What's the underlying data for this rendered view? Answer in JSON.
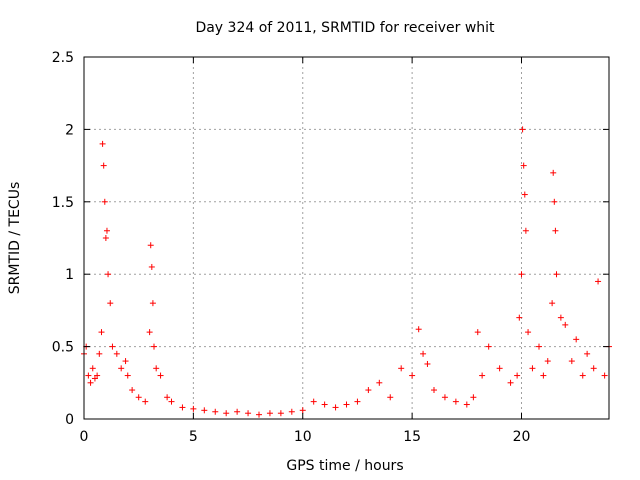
{
  "chart_data": {
    "type": "scatter",
    "title": "Day 324 of 2011, SRMTID for receiver whit",
    "xlabel": "GPS time / hours",
    "ylabel": "SRMTID / TECUs",
    "xlim": [
      0,
      24
    ],
    "ylim": [
      0,
      2.5
    ],
    "xticks": [
      0,
      5,
      10,
      15,
      20
    ],
    "yticks": [
      0,
      0.5,
      1,
      1.5,
      2,
      2.5
    ],
    "ytick_labels": [
      "0",
      "0.5",
      "1",
      "1.5",
      "2",
      "2.5"
    ],
    "grid": true,
    "marker": "plus",
    "color": "#ff0000",
    "series": [
      {
        "name": "SRMTID",
        "x": [
          0.0,
          0.1,
          0.2,
          0.3,
          0.4,
          0.5,
          0.6,
          0.7,
          0.8,
          0.85,
          0.9,
          0.95,
          1.0,
          1.05,
          1.1,
          1.2,
          1.3,
          1.5,
          1.7,
          1.9,
          2.0,
          2.2,
          2.5,
          2.8,
          3.0,
          3.05,
          3.1,
          3.15,
          3.2,
          3.3,
          3.5,
          3.8,
          4.0,
          4.5,
          5.0,
          5.5,
          6.0,
          6.5,
          7.0,
          7.5,
          8.0,
          8.5,
          9.0,
          9.5,
          10.0,
          10.5,
          11.0,
          11.5,
          12.0,
          12.5,
          13.0,
          13.5,
          14.0,
          14.5,
          15.0,
          15.3,
          15.5,
          15.7,
          16.0,
          16.5,
          17.0,
          17.5,
          17.8,
          18.0,
          18.2,
          18.5,
          19.0,
          19.5,
          19.8,
          19.9,
          20.0,
          20.05,
          20.1,
          20.15,
          20.2,
          20.3,
          20.5,
          20.8,
          21.0,
          21.2,
          21.4,
          21.45,
          21.5,
          21.55,
          21.6,
          21.8,
          22.0,
          22.3,
          22.5,
          22.8,
          23.0,
          23.3,
          23.5,
          23.8,
          24.0
        ],
        "values": [
          0.45,
          0.5,
          0.3,
          0.25,
          0.35,
          0.28,
          0.3,
          0.45,
          0.6,
          1.9,
          1.75,
          1.5,
          1.25,
          1.3,
          1.0,
          0.8,
          0.5,
          0.45,
          0.35,
          0.4,
          0.3,
          0.2,
          0.15,
          0.12,
          0.6,
          1.2,
          1.05,
          0.8,
          0.5,
          0.35,
          0.3,
          0.15,
          0.12,
          0.08,
          0.07,
          0.06,
          0.05,
          0.04,
          0.05,
          0.04,
          0.03,
          0.04,
          0.04,
          0.05,
          0.06,
          0.12,
          0.1,
          0.08,
          0.1,
          0.12,
          0.2,
          0.25,
          0.15,
          0.35,
          0.3,
          0.62,
          0.45,
          0.38,
          0.2,
          0.15,
          0.12,
          0.1,
          0.15,
          0.6,
          0.3,
          0.5,
          0.35,
          0.25,
          0.3,
          0.7,
          1.0,
          2.0,
          1.75,
          1.55,
          1.3,
          0.6,
          0.35,
          0.5,
          0.3,
          0.4,
          0.8,
          1.7,
          1.5,
          1.3,
          1.0,
          0.7,
          0.65,
          0.4,
          0.55,
          0.3,
          0.45,
          0.35,
          0.95,
          0.3,
          0.5
        ]
      }
    ]
  }
}
